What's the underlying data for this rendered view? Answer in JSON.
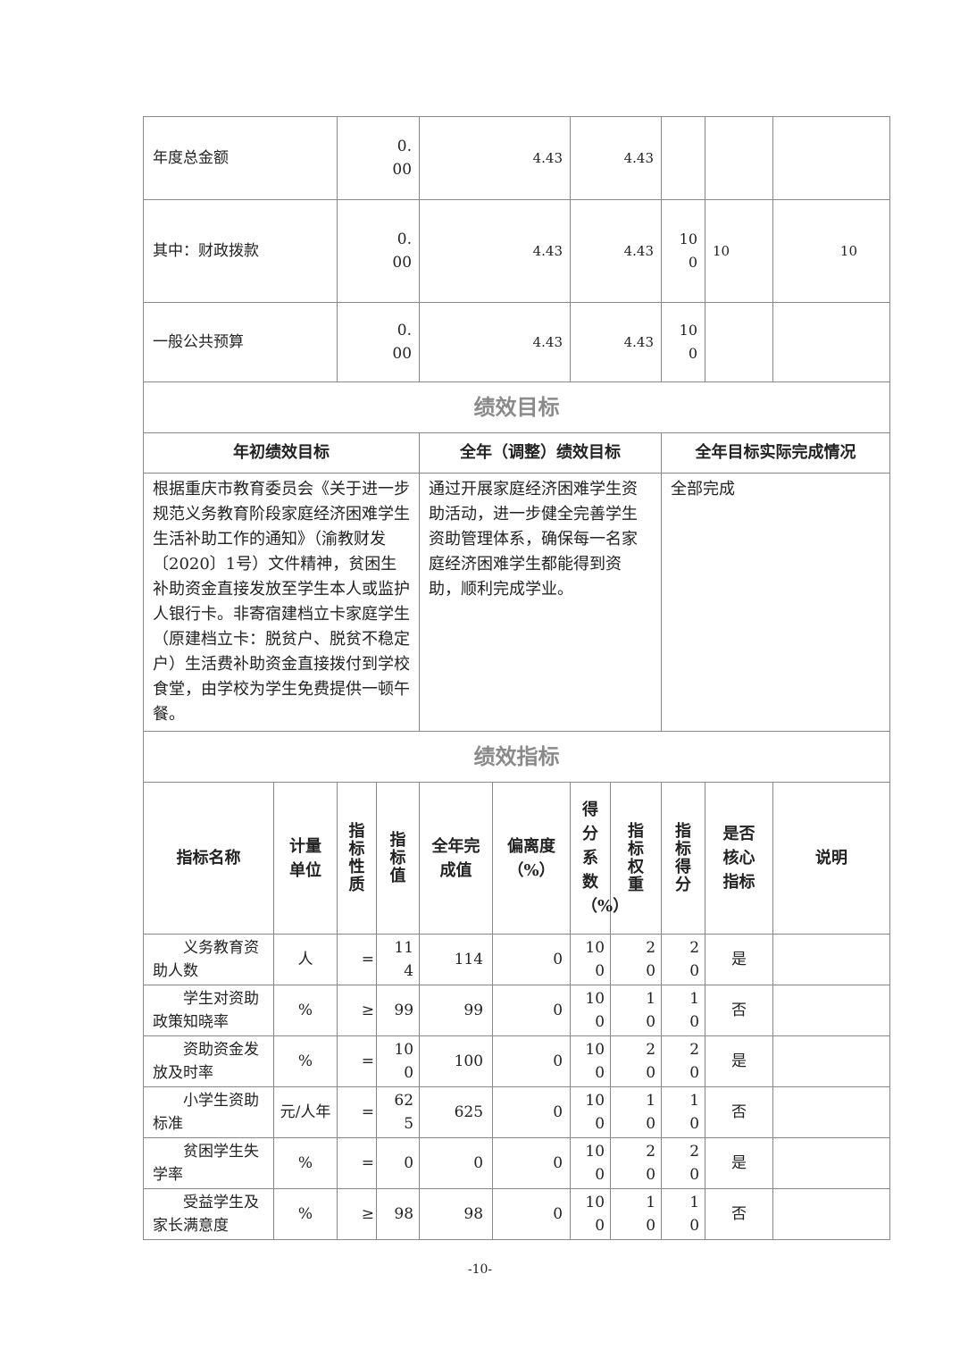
{
  "budget_rows": [
    {
      "label": "年度总金额",
      "initial": "0.00",
      "adjusted": "4.43",
      "executed": "4.43",
      "rate": "",
      "score_weight": "",
      "score": ""
    },
    {
      "label": "其中：财政拨款",
      "initial": "0.00",
      "adjusted": "4.43",
      "executed": "4.43",
      "rate": "100",
      "score_weight": "10",
      "score": "10"
    },
    {
      "label": "一般公共预算",
      "initial": "0.00",
      "adjusted": "4.43",
      "executed": "4.43",
      "rate": "100",
      "score_weight": "",
      "score": ""
    }
  ],
  "goals": {
    "section_title": "绩效目标",
    "headers": [
      "年初绩效目标",
      "全年（调整）绩效目标",
      "全年目标实际完成情况"
    ],
    "initial": "根据重庆市教育委员会《关于进一步规范义务教育阶段家庭经济困难学生生活补助工作的通知》（渝教财发〔2020〕1号）文件精神，贫困生补助资金直接发放至学生本人或监护人银行卡。非寄宿建档立卡家庭学生（原建档立卡：脱贫户、脱贫不稳定户）生活费补助资金直接拨付到学校食堂，由学校为学生免费提供一顿午餐。",
    "adjusted": "通过开展家庭经济困难学生资助活动，进一步健全完善学生资助管理体系，确保每一名家庭经济困难学生都能得到资助，顺利完成学业。",
    "actual": "全部完成"
  },
  "indicators": {
    "section_title": "绩效指标",
    "headers": [
      "指标名称",
      "计量单位",
      "指标性质",
      "指标值",
      "全年完成值",
      "偏离度（%）",
      "得分系数（%）",
      "指标权重",
      "指标得分",
      "是否核心指标",
      "说明"
    ],
    "rows": [
      {
        "name": "义务教育资助人数",
        "unit": "人",
        "nature": "=",
        "target": "114",
        "actual": "114",
        "deviation": "0",
        "coef": "100",
        "weight": "20",
        "score": "20",
        "core": "是",
        "note": ""
      },
      {
        "name": "学生对资助政策知晓率",
        "unit": "%",
        "nature": "≥",
        "target": "99",
        "actual": "99",
        "deviation": "0",
        "coef": "100",
        "weight": "10",
        "score": "10",
        "core": "否",
        "note": ""
      },
      {
        "name": "资助资金发放及时率",
        "unit": "%",
        "nature": "=",
        "target": "100",
        "actual": "100",
        "deviation": "0",
        "coef": "100",
        "weight": "20",
        "score": "20",
        "core": "是",
        "note": ""
      },
      {
        "name": "小学生资助标准",
        "unit": "元/人年",
        "nature": "=",
        "target": "625",
        "actual": "625",
        "deviation": "0",
        "coef": "100",
        "weight": "10",
        "score": "10",
        "core": "否",
        "note": ""
      },
      {
        "name": "贫困学生失学率",
        "unit": "%",
        "nature": "=",
        "target": "0",
        "actual": "0",
        "deviation": "0",
        "coef": "100",
        "weight": "20",
        "score": "20",
        "core": "是",
        "note": ""
      },
      {
        "name": "受益学生及家长满意度",
        "unit": "%",
        "nature": "≥",
        "target": "98",
        "actual": "98",
        "deviation": "0",
        "coef": "100",
        "weight": "10",
        "score": "10",
        "core": "否",
        "note": ""
      }
    ]
  },
  "page_number": "-10-"
}
